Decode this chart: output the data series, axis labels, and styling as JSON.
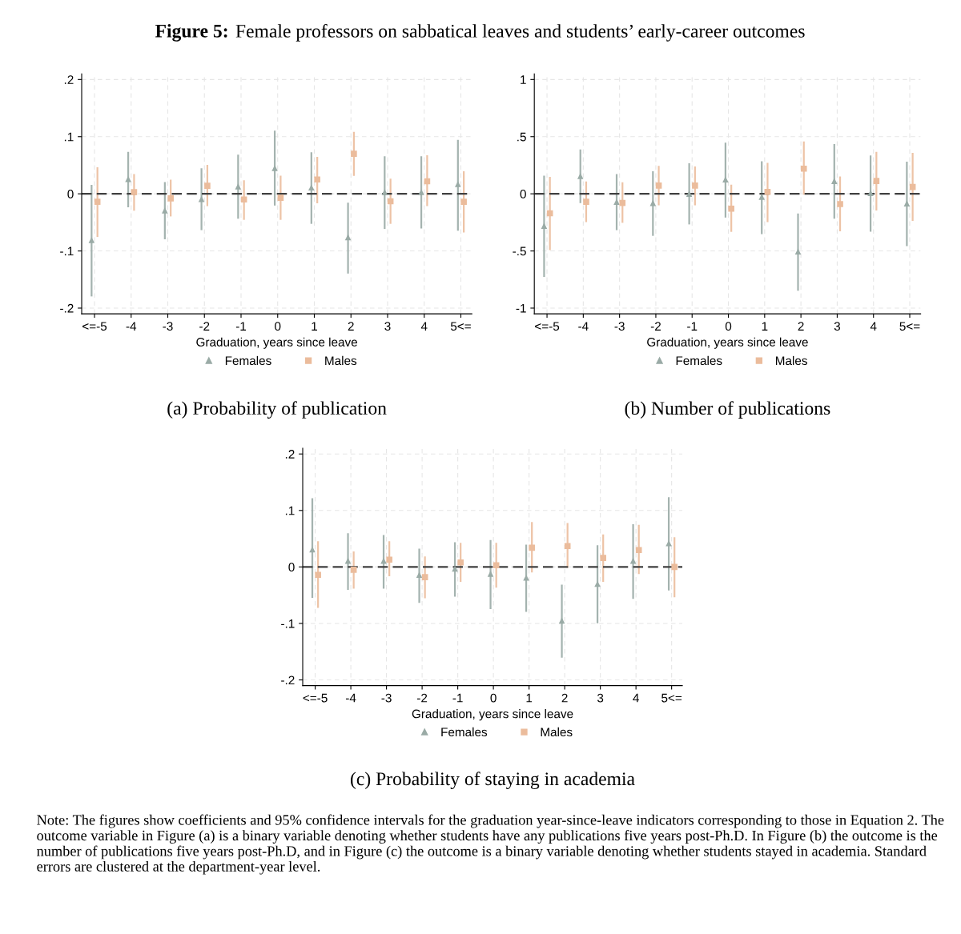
{
  "chart_data": [
    {
      "type": "scatter",
      "title": "(a) Probability of publication",
      "xlabel": "Graduation, years since leave",
      "annotations": [
        "Figure 5:",
        "Female professors on sabbatical leaves and students’ early-career outcomes"
      ],
      "categories": [
        "<=-5",
        "-4",
        "-3",
        "-2",
        "-1",
        "0",
        "1",
        "2",
        "3",
        "4",
        "5<="
      ],
      "series": [
        {
          "name": "Females",
          "color": "#9aaba6",
          "marker": "triangle",
          "values": [
            -0.081,
            0.026,
            -0.029,
            -0.009,
            0.013,
            0.045,
            0.011,
            -0.076,
            0.003,
            0.003,
            0.017
          ],
          "errors": [
            [
              -0.178,
              0.014
            ],
            [
              -0.022,
              0.072
            ],
            [
              -0.078,
              0.019
            ],
            [
              -0.062,
              0.043
            ],
            [
              -0.042,
              0.067
            ],
            [
              -0.019,
              0.109
            ],
            [
              -0.051,
              0.071
            ],
            [
              -0.138,
              -0.017
            ],
            [
              -0.06,
              0.064
            ],
            [
              -0.059,
              0.064
            ],
            [
              -0.063,
              0.093
            ]
          ]
        },
        {
          "name": "Males",
          "color": "#ebbc9c",
          "marker": "square",
          "values": [
            -0.014,
            0.003,
            -0.008,
            0.014,
            -0.01,
            -0.007,
            0.025,
            0.07,
            -0.013,
            0.022,
            -0.014
          ],
          "errors": [
            [
              -0.074,
              0.045
            ],
            [
              -0.028,
              0.033
            ],
            [
              -0.038,
              0.023
            ],
            [
              -0.02,
              0.049
            ],
            [
              -0.044,
              0.022
            ],
            [
              -0.044,
              0.03
            ],
            [
              -0.015,
              0.063
            ],
            [
              0.033,
              0.107
            ],
            [
              -0.051,
              0.025
            ],
            [
              -0.02,
              0.066
            ],
            [
              -0.066,
              0.038
            ]
          ]
        }
      ],
      "ylim": [
        -0.21,
        0.21
      ],
      "yticks": [
        {
          "value": -0.2,
          "label": "-.2"
        },
        {
          "value": -0.1,
          "label": "-.1"
        },
        0,
        {
          "value": 0.1,
          "label": ".1"
        },
        {
          "value": 0.2,
          "label": ".2"
        }
      ],
      "ref_lines": [
        {
          "axis": "y",
          "value": 0,
          "label": null,
          "color": "#404040",
          "line_style": "dashed"
        }
      ],
      "grid": true,
      "legend": "bottom"
    },
    {
      "type": "scatter",
      "title": "(b) Number of publications",
      "xlabel": "Graduation, years since leave",
      "categories": [
        "<=-5",
        "-4",
        "-3",
        "-2",
        "-1",
        "0",
        "1",
        "2",
        "3",
        "4",
        "5<="
      ],
      "series": [
        {
          "name": "Females",
          "color": "#9aaba6",
          "marker": "triangle",
          "values": [
            -0.28,
            0.155,
            -0.07,
            -0.08,
            0.0,
            0.125,
            -0.026,
            -0.505,
            0.112,
            0.007,
            -0.084
          ],
          "errors": [
            [
              -0.72,
              0.15
            ],
            [
              -0.074,
              0.38
            ],
            [
              -0.31,
              0.165
            ],
            [
              -0.36,
              0.19
            ],
            [
              -0.26,
              0.26
            ],
            [
              -0.2,
              0.44
            ],
            [
              -0.345,
              0.277
            ],
            [
              -0.84,
              -0.18
            ],
            [
              -0.21,
              0.428
            ],
            [
              -0.323,
              0.328
            ],
            [
              -0.45,
              0.273
            ]
          ]
        },
        {
          "name": "Males",
          "color": "#ebbc9c",
          "marker": "square",
          "values": [
            -0.17,
            -0.07,
            -0.08,
            0.072,
            0.072,
            -0.13,
            0.017,
            0.22,
            -0.09,
            0.112,
            0.06
          ],
          "errors": [
            [
              -0.485,
              0.14
            ],
            [
              -0.24,
              0.1
            ],
            [
              -0.246,
              0.093
            ],
            [
              -0.093,
              0.237
            ],
            [
              -0.093,
              0.232
            ],
            [
              -0.325,
              0.072
            ],
            [
              -0.24,
              0.263
            ],
            [
              0.0,
              0.45
            ],
            [
              -0.32,
              0.144
            ],
            [
              -0.139,
              0.36
            ],
            [
              -0.23,
              0.35
            ]
          ]
        }
      ],
      "ylim": [
        -1.05,
        1.05
      ],
      "yticks": [
        -1,
        {
          "value": -0.5,
          "label": "-.5"
        },
        0,
        {
          "value": 0.5,
          "label": ".5"
        },
        1
      ],
      "ref_lines": [
        {
          "axis": "y",
          "value": 0,
          "label": null,
          "color": "#404040",
          "line_style": "dashed"
        }
      ],
      "grid": true,
      "legend": "bottom"
    },
    {
      "type": "scatter",
      "title": "(c) Probability of staying in academia",
      "xlabel": "Graduation, years since leave",
      "annotations": [
        "Note: The figures show coefficients and 95% confidence intervals for the graduation year-since-leave indicators corresponding to those in Equation 2. The outcome variable in Figure (a) is a binary variable denoting whether students have any publications five years post-Ph.D. In Figure (b) the outcome is the number of publications five years post-Ph.D, and in Figure (c) the outcome is a binary variable denoting whether students stayed in academia. Standard errors are clustered at the department-year level."
      ],
      "categories": [
        "<=-5",
        "-4",
        "-3",
        "-2",
        "-1",
        "0",
        "1",
        "2",
        "3",
        "4",
        "5<="
      ],
      "series": [
        {
          "name": "Females",
          "color": "#9aaba6",
          "marker": "triangle",
          "values": [
            0.031,
            0.011,
            0.011,
            -0.014,
            -0.003,
            -0.012,
            -0.019,
            -0.095,
            -0.03,
            0.011,
            0.042
          ],
          "errors": [
            [
              -0.053,
              0.12
            ],
            [
              -0.039,
              0.058
            ],
            [
              -0.037,
              0.055
            ],
            [
              -0.062,
              0.031
            ],
            [
              -0.051,
              0.042
            ],
            [
              -0.073,
              0.046
            ],
            [
              -0.078,
              0.038
            ],
            [
              -0.159,
              -0.033
            ],
            [
              -0.098,
              0.037
            ],
            [
              -0.055,
              0.074
            ],
            [
              -0.04,
              0.122
            ]
          ]
        },
        {
          "name": "Males",
          "color": "#ebbc9c",
          "marker": "square",
          "values": [
            -0.014,
            -0.005,
            0.013,
            -0.018,
            0.008,
            0.003,
            0.034,
            0.037,
            0.016,
            0.03,
            0.0
          ],
          "errors": [
            [
              -0.071,
              0.044
            ],
            [
              -0.037,
              0.026
            ],
            [
              -0.015,
              0.044
            ],
            [
              -0.054,
              0.017
            ],
            [
              -0.025,
              0.041
            ],
            [
              -0.035,
              0.041
            ],
            [
              -0.008,
              0.078
            ],
            [
              0.0,
              0.076
            ],
            [
              -0.025,
              0.056
            ],
            [
              -0.011,
              0.073
            ],
            [
              -0.052,
              0.051
            ]
          ]
        }
      ],
      "ylim": [
        -0.21,
        0.21
      ],
      "yticks": [
        {
          "value": -0.2,
          "label": "-.2"
        },
        {
          "value": -0.1,
          "label": "-.1"
        },
        0,
        {
          "value": 0.1,
          "label": ".1"
        },
        {
          "value": 0.2,
          "label": ".2"
        }
      ],
      "ref_lines": [
        {
          "axis": "y",
          "value": 0,
          "label": null,
          "color": "#404040",
          "line_style": "dashed"
        }
      ],
      "grid": true,
      "legend": "bottom"
    }
  ]
}
